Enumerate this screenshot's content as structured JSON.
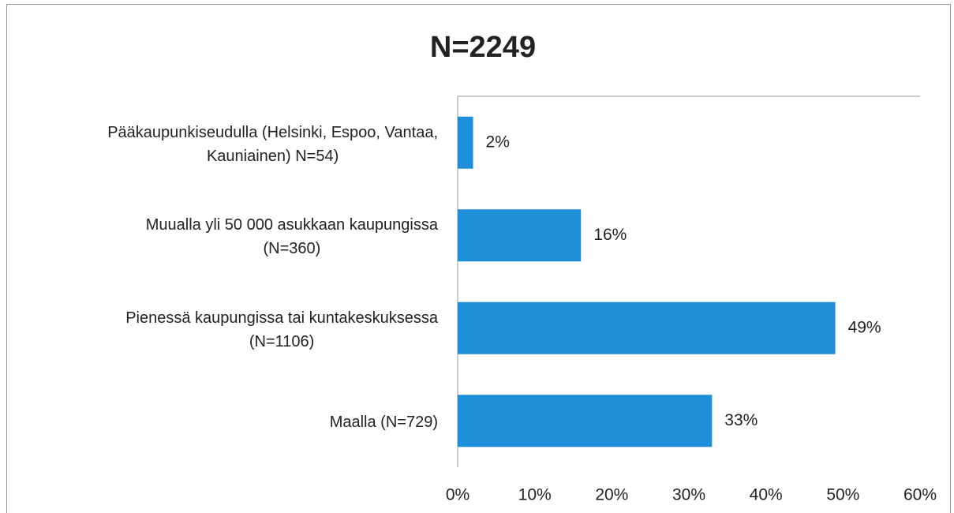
{
  "chart_data": {
    "type": "bar",
    "orientation": "horizontal",
    "title": "N=2249",
    "categories": [
      "Pääkaupunkiseudulla (Helsinki, Espoo, Vantaa,\nKauniainen) N=54)",
      "Muualla yli 50 000 asukkaan kaupungissa\n(N=360)",
      "Pienessä kaupungissa tai kuntakeskuksessa\n(N=1106)",
      "Maalla (N=729)"
    ],
    "values": [
      2,
      16,
      49,
      33
    ],
    "value_labels": [
      "2%",
      "16%",
      "49%",
      "33%"
    ],
    "color": "#1f8fda",
    "xlim": [
      0,
      60
    ],
    "xticks": [
      {
        "value": 0,
        "label": "0%"
      },
      {
        "value": 10,
        "label": "10%"
      },
      {
        "value": 20,
        "label": "20%"
      },
      {
        "value": 30,
        "label": "30%"
      },
      {
        "value": 40,
        "label": "40%"
      },
      {
        "value": 50,
        "label": "50%"
      },
      {
        "value": 60,
        "label": "60%"
      }
    ],
    "grid": false
  }
}
